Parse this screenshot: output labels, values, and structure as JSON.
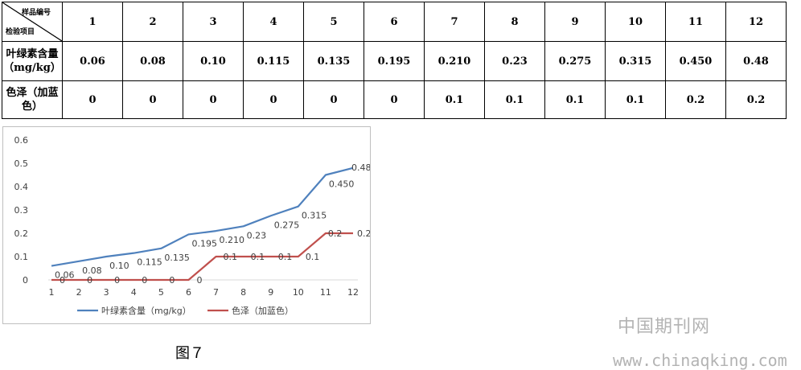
{
  "table": {
    "header_top": "样品编号",
    "header_bottom": "检验项目",
    "sample_numbers": [
      "1",
      "2",
      "3",
      "4",
      "5",
      "6",
      "7",
      "8",
      "9",
      "10",
      "11",
      "12"
    ],
    "rows": [
      {
        "label": "叶绿素含量\n（mg/kg）",
        "values": [
          "0.06",
          "0.08",
          "0.10",
          "0.115",
          "0.135",
          "0.195",
          "0.210",
          "0.23",
          "0.275",
          "0.315",
          "0.450",
          "0.48"
        ]
      },
      {
        "label": "色泽（加蓝色）",
        "values": [
          "0",
          "0",
          "0",
          "0",
          "0",
          "0",
          "0.1",
          "0.1",
          "0.1",
          "0.1",
          "0.2",
          "0.2"
        ]
      }
    ]
  },
  "chart_data": {
    "type": "line",
    "x": [
      1,
      2,
      3,
      4,
      5,
      6,
      7,
      8,
      9,
      10,
      11,
      12
    ],
    "ylim": [
      0,
      0.6
    ],
    "yticks": [
      "0",
      "0.1",
      "0.2",
      "0.3",
      "0.4",
      "0.5",
      "0.6"
    ],
    "grid": false,
    "legend_position": "bottom",
    "series": [
      {
        "name": "叶绿素含量（mg/kg）",
        "color": "#4f81bd",
        "values": [
          0.06,
          0.08,
          0.1,
          0.115,
          0.135,
          0.195,
          0.21,
          0.23,
          0.275,
          0.315,
          0.45,
          0.48
        ],
        "labels": [
          "0.06",
          "0.08",
          "0.10",
          "0.115",
          "0.135",
          "0.195",
          "0.210",
          "0.23",
          "0.275",
          "0.315",
          "0.450",
          "0.48"
        ]
      },
      {
        "name": "色泽（加蓝色）",
        "color": "#c0504d",
        "values": [
          0,
          0,
          0,
          0,
          0,
          0,
          0.1,
          0.1,
          0.1,
          0.1,
          0.2,
          0.2
        ],
        "labels": [
          "0",
          "0",
          "0",
          "0",
          "0",
          "0",
          "0.1",
          "0.1",
          "0.1",
          "0.1",
          "0.2",
          "0.2"
        ]
      }
    ]
  },
  "caption": "图７",
  "watermark": {
    "cn": "中国期刊网",
    "url": "www.chinaqking.com"
  }
}
